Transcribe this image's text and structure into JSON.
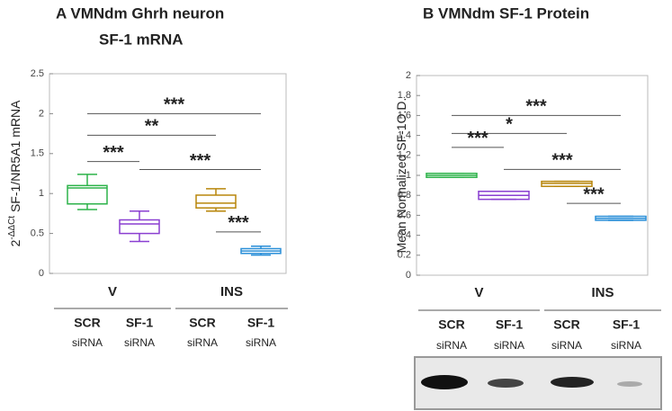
{
  "chart_data": [
    {
      "type": "box",
      "title": "A  VMNdm Ghrh neuron",
      "subtitle": "SF-1 mRNA",
      "ylabel_base": "2",
      "ylabel_sup": "-ΔΔCt",
      "ylabel": " SF-1/NR5A1 mRNA",
      "ylim": [
        0,
        2.5
      ],
      "yticks": [
        0,
        0.5,
        1,
        1.5,
        2,
        2.5
      ],
      "categories": [
        "SCR",
        "SF-1",
        "SCR",
        "SF-1"
      ],
      "category_sublabels": [
        "siRNA",
        "siRNA",
        "siRNA",
        "siRNA"
      ],
      "groups": [
        "V",
        "INS"
      ],
      "colors": [
        "#2db34a",
        "#8a3fd1",
        "#b8860b",
        "#2a8fd8"
      ],
      "values": [
        [
          0.8,
          0.87,
          1.07,
          1.1,
          1.24
        ],
        [
          0.4,
          0.5,
          0.62,
          0.67,
          0.78
        ],
        [
          0.78,
          0.82,
          0.88,
          0.98,
          1.06
        ],
        [
          0.23,
          0.25,
          0.28,
          0.31,
          0.34
        ]
      ],
      "comparisons": [
        {
          "from": 0,
          "to": 3,
          "y": 2.0,
          "label": "***"
        },
        {
          "from": 0,
          "to": 2,
          "y": 1.73,
          "label": "**"
        },
        {
          "from": 0,
          "to": 1,
          "y": 1.4,
          "label": "***"
        },
        {
          "from": 1,
          "to": 3,
          "y": 1.3,
          "label": "***"
        },
        {
          "from": 2,
          "to": 3,
          "y": 0.52,
          "label": "***"
        }
      ]
    },
    {
      "type": "box",
      "title": "B  VMNdm SF-1 Protein",
      "ylabel": "Mean Normalized SF-1O.D.",
      "ylim": [
        0,
        2
      ],
      "yticks": [
        0,
        0.2,
        0.4,
        0.6,
        0.8,
        1,
        1.2,
        1.4,
        1.6,
        1.8,
        2
      ],
      "categories": [
        "SCR",
        "SF-1",
        "SCR",
        "SF-1"
      ],
      "category_sublabels": [
        "siRNA",
        "siRNA",
        "siRNA",
        "siRNA"
      ],
      "groups": [
        "V",
        "INS"
      ],
      "colors": [
        "#2db34a",
        "#8a3fd1",
        "#b8860b",
        "#2a8fd8"
      ],
      "values": [
        [
          0.98,
          0.98,
          1.0,
          1.02,
          1.02
        ],
        [
          0.76,
          0.76,
          0.8,
          0.84,
          0.84
        ],
        [
          0.89,
          0.89,
          0.92,
          0.94,
          0.94
        ],
        [
          0.55,
          0.55,
          0.57,
          0.59,
          0.59
        ]
      ],
      "comparisons": [
        {
          "from": 0,
          "to": 3,
          "y": 1.6,
          "label": "***"
        },
        {
          "from": 0,
          "to": 2,
          "y": 1.42,
          "label": "*"
        },
        {
          "from": 0,
          "to": 1,
          "y": 1.28,
          "label": "***"
        },
        {
          "from": 1,
          "to": 3,
          "y": 1.06,
          "label": "***"
        },
        {
          "from": 2,
          "to": 3,
          "y": 0.72,
          "label": "***"
        }
      ]
    }
  ]
}
